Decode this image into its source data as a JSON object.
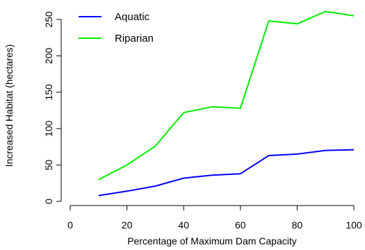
{
  "chart_data": {
    "type": "line",
    "title": "",
    "xlabel": "Percentage of Maximum Dam Capacity",
    "ylabel": "Increased Habitat (hectares)",
    "x": [
      10,
      20,
      30,
      40,
      50,
      60,
      70,
      80,
      90,
      100
    ],
    "xlim": [
      0,
      100
    ],
    "ylim": [
      0,
      250
    ],
    "xticks": [
      0,
      20,
      40,
      60,
      80,
      100
    ],
    "yticks": [
      0,
      50,
      100,
      150,
      200,
      250
    ],
    "grid": false,
    "legend_position": "top-left",
    "series": [
      {
        "name": "Aquatic",
        "color": "#0000ff",
        "values": [
          8,
          14,
          21,
          32,
          36,
          38,
          63,
          65,
          70,
          71
        ]
      },
      {
        "name": "Riparian",
        "color": "#00ee00",
        "values": [
          30,
          50,
          76,
          122,
          130,
          128,
          248,
          244,
          261,
          255
        ]
      }
    ]
  }
}
